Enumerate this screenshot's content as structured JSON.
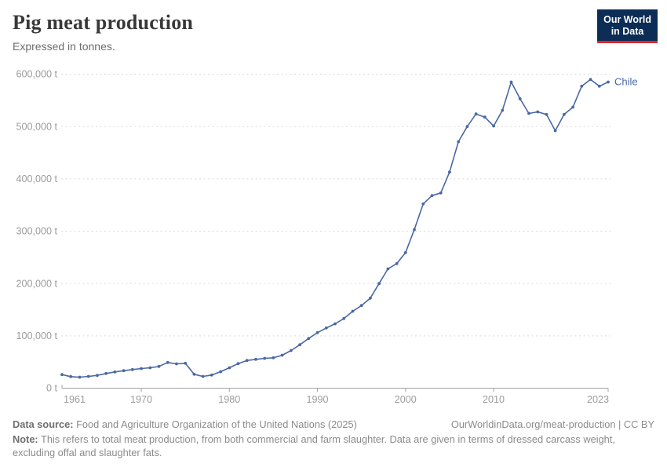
{
  "header": {
    "title": "Pig meat production",
    "subtitle": "Expressed in tonnes.",
    "logo_line1": "Our World",
    "logo_line2": "in Data"
  },
  "chart_data": {
    "type": "line",
    "title": "Pig meat production",
    "subtitle": "Expressed in tonnes.",
    "entity_label": "Chile",
    "color": "#4a68a4",
    "grid": "horizontal-dashed",
    "legend_position": "end-of-line-label",
    "x_range": [
      1961,
      2023
    ],
    "y_range": [
      0,
      600000
    ],
    "xticks": [
      {
        "value": 1961,
        "label": "1961"
      },
      {
        "value": 1970,
        "label": "1970"
      },
      {
        "value": 1980,
        "label": "1980"
      },
      {
        "value": 1990,
        "label": "1990"
      },
      {
        "value": 2000,
        "label": "2000"
      },
      {
        "value": 2010,
        "label": "2010"
      },
      {
        "value": 2023,
        "label": "2023"
      }
    ],
    "yticks": [
      {
        "value": 0,
        "label": "0 t"
      },
      {
        "value": 100000,
        "label": "100,000 t"
      },
      {
        "value": 200000,
        "label": "200,000 t"
      },
      {
        "value": 300000,
        "label": "300,000 t"
      },
      {
        "value": 400000,
        "label": "400,000 t"
      },
      {
        "value": 500000,
        "label": "500,000 t"
      },
      {
        "value": 600000,
        "label": "600,000 t"
      }
    ],
    "series": [
      {
        "name": "Chile",
        "x": [
          1961,
          1962,
          1963,
          1964,
          1965,
          1966,
          1967,
          1968,
          1969,
          1970,
          1971,
          1972,
          1973,
          1974,
          1975,
          1976,
          1977,
          1978,
          1979,
          1980,
          1981,
          1982,
          1983,
          1984,
          1985,
          1986,
          1987,
          1988,
          1989,
          1990,
          1991,
          1992,
          1993,
          1994,
          1995,
          1996,
          1997,
          1998,
          1999,
          2000,
          2001,
          2002,
          2003,
          2004,
          2005,
          2006,
          2007,
          2008,
          2009,
          2010,
          2011,
          2012,
          2013,
          2014,
          2015,
          2016,
          2017,
          2018,
          2019,
          2020,
          2021,
          2022,
          2023
        ],
        "values": [
          26000,
          22000,
          21000,
          22500,
          24500,
          28000,
          31000,
          33500,
          35500,
          37500,
          39000,
          41500,
          49000,
          46500,
          47500,
          26500,
          22500,
          25000,
          31500,
          39000,
          47000,
          53000,
          55000,
          57000,
          58000,
          63000,
          72000,
          83000,
          95000,
          106000,
          115000,
          123000,
          133000,
          147000,
          158000,
          172000,
          200000,
          228000,
          238000,
          259000,
          303000,
          352000,
          368000,
          373000,
          413000,
          471000,
          500000,
          524000,
          518000,
          501000,
          531000,
          585000,
          553000,
          525000,
          528000,
          523000,
          492000,
          523000,
          537000,
          577000,
          590000,
          577000,
          585000
        ]
      }
    ]
  },
  "footer": {
    "datasource_label": "Data source:",
    "datasource_text": "Food and Agriculture Organization of the United Nations (2025)",
    "source_right": "OurWorldinData.org/meat-production | CC BY",
    "note_label": "Note:",
    "note_text": "This refers to total meat production, from both commercial and farm slaughter. Data are given in terms of dressed carcass weight, excluding offal and slaughter fats."
  }
}
